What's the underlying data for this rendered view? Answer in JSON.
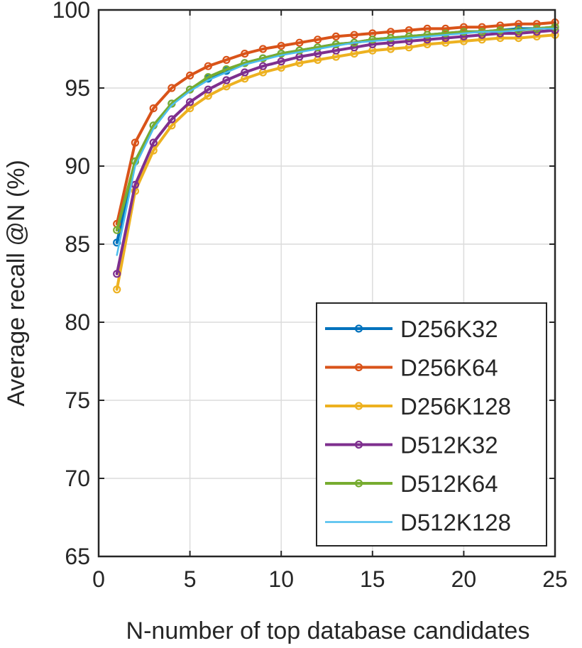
{
  "chart_data": {
    "type": "line",
    "title": "",
    "xlabel": "N-number of top database candidates",
    "ylabel": "Average recall @N (%)",
    "xlim": [
      0,
      25
    ],
    "ylim": [
      65,
      100
    ],
    "xticks": [
      0,
      5,
      10,
      15,
      20,
      25
    ],
    "yticks": [
      65,
      70,
      75,
      80,
      85,
      90,
      95,
      100
    ],
    "grid": true,
    "legend_position": "bottom-right",
    "x": [
      1,
      2,
      3,
      4,
      5,
      6,
      7,
      8,
      9,
      10,
      11,
      12,
      13,
      14,
      15,
      16,
      17,
      18,
      19,
      20,
      21,
      22,
      23,
      24,
      25
    ],
    "series": [
      {
        "name": "D256K32",
        "color": "#0072BD",
        "marker": true,
        "values": [
          85.1,
          90.3,
          92.6,
          94.0,
          94.9,
          95.6,
          96.1,
          96.6,
          96.9,
          97.2,
          97.4,
          97.6,
          97.8,
          97.9,
          98.1,
          98.2,
          98.3,
          98.4,
          98.5,
          98.6,
          98.6,
          98.7,
          98.8,
          98.8,
          98.9
        ]
      },
      {
        "name": "D256K64",
        "color": "#D95319",
        "marker": true,
        "values": [
          86.3,
          91.5,
          93.7,
          95.0,
          95.8,
          96.4,
          96.8,
          97.2,
          97.5,
          97.7,
          97.9,
          98.1,
          98.3,
          98.4,
          98.5,
          98.6,
          98.7,
          98.8,
          98.8,
          98.9,
          98.9,
          99.0,
          99.1,
          99.1,
          99.2
        ]
      },
      {
        "name": "D256K128",
        "color": "#EDB120",
        "marker": true,
        "values": [
          82.1,
          88.4,
          91.0,
          92.6,
          93.7,
          94.5,
          95.1,
          95.6,
          96.0,
          96.3,
          96.6,
          96.8,
          97.0,
          97.2,
          97.4,
          97.5,
          97.6,
          97.8,
          97.9,
          98.0,
          98.1,
          98.2,
          98.2,
          98.3,
          98.4
        ]
      },
      {
        "name": "D512K32",
        "color": "#7E2F8E",
        "marker": true,
        "values": [
          83.1,
          88.8,
          91.5,
          93.0,
          94.1,
          94.9,
          95.5,
          96.0,
          96.4,
          96.7,
          97.0,
          97.2,
          97.4,
          97.6,
          97.8,
          97.9,
          98.0,
          98.1,
          98.2,
          98.3,
          98.4,
          98.5,
          98.5,
          98.6,
          98.7
        ]
      },
      {
        "name": "D512K64",
        "color": "#77AC30",
        "marker": true,
        "values": [
          85.9,
          90.3,
          92.6,
          94.0,
          94.9,
          95.7,
          96.2,
          96.6,
          96.9,
          97.2,
          97.4,
          97.6,
          97.8,
          97.9,
          98.1,
          98.2,
          98.3,
          98.4,
          98.5,
          98.6,
          98.6,
          98.7,
          98.7,
          98.8,
          98.9
        ]
      },
      {
        "name": "D512K128",
        "color": "#4DBEEE",
        "marker": false,
        "values": [
          84.3,
          90.0,
          92.4,
          93.9,
          94.8,
          95.5,
          96.0,
          96.5,
          96.8,
          97.1,
          97.3,
          97.5,
          97.7,
          97.9,
          98.0,
          98.1,
          98.2,
          98.3,
          98.4,
          98.5,
          98.6,
          98.6,
          98.7,
          98.8,
          98.8
        ]
      }
    ]
  }
}
